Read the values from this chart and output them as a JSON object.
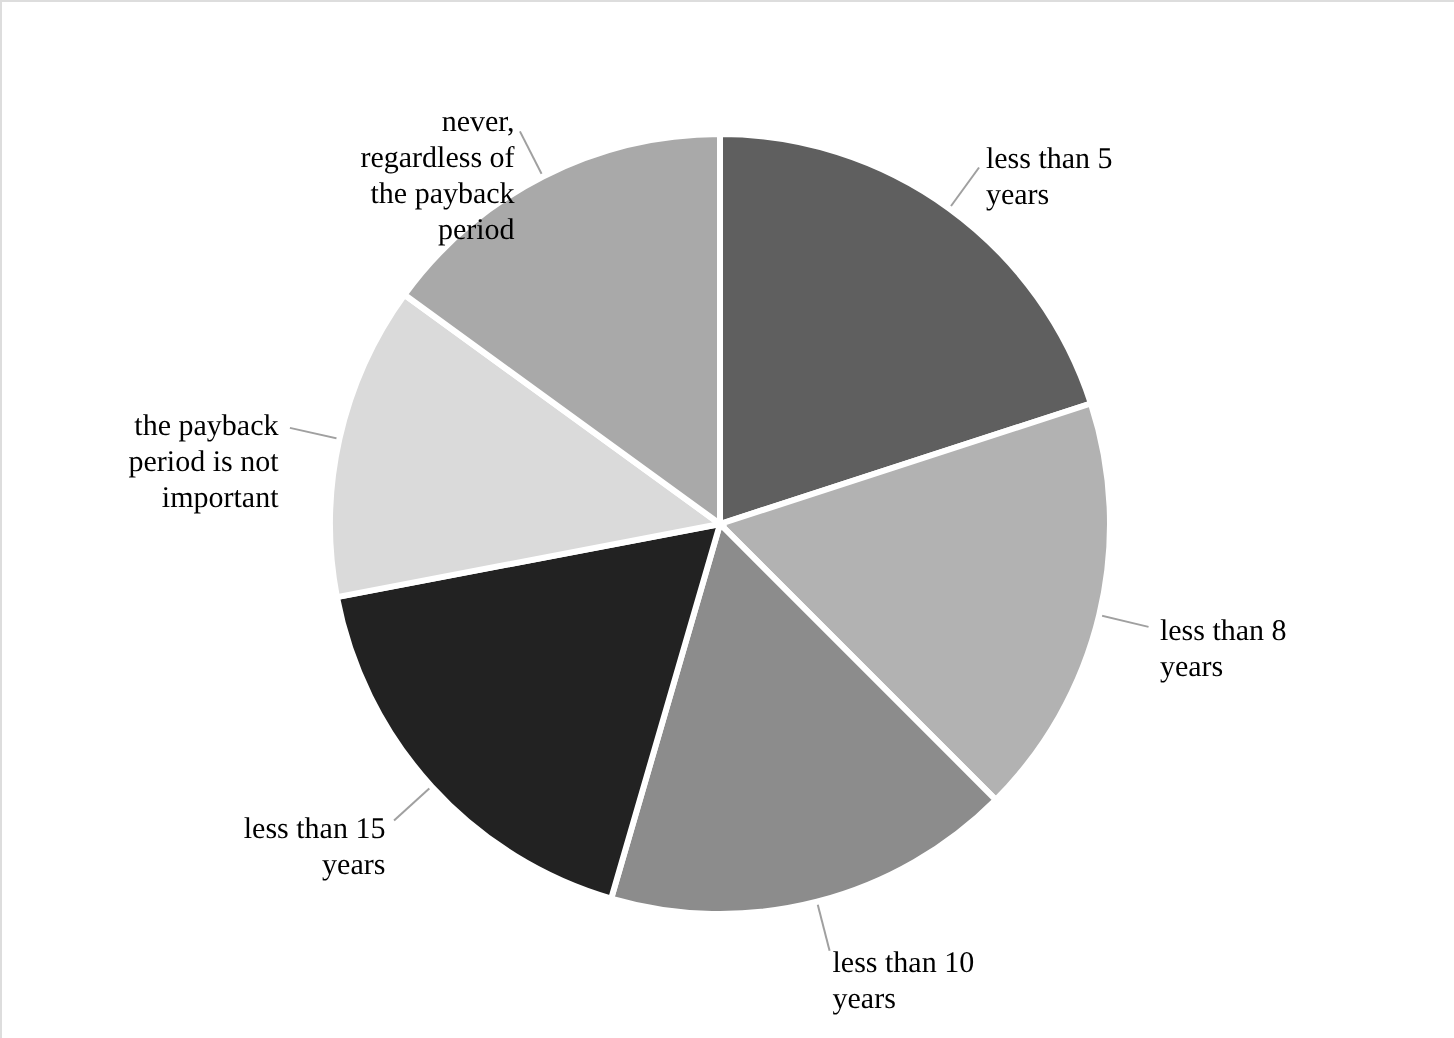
{
  "chart_data": {
    "type": "pie",
    "categories": [
      "less than 5 years",
      "less than 8 years",
      "less than 10 years",
      "less than 15 years",
      "the payback period is not important",
      "never, regardless of the payback period"
    ],
    "values": [
      20,
      17.5,
      17,
      17.5,
      13,
      15
    ],
    "colors": [
      "#5f5f5f",
      "#b2b2b2",
      "#8c8c8c",
      "#222222",
      "#dadada",
      "#a9a9a9"
    ]
  }
}
